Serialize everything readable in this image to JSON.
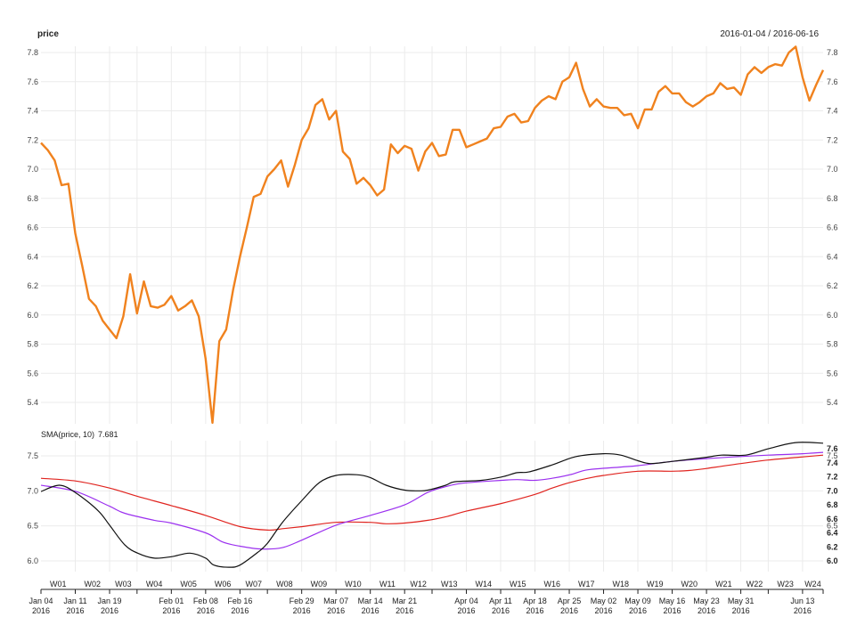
{
  "chart_data": [
    {
      "type": "line",
      "title": "price",
      "date_range": "2016-01-04 / 2016-06-16",
      "ylim": [
        5.3,
        7.85
      ],
      "yticks": [
        "5.4",
        "5.6",
        "5.8",
        "6.0",
        "6.2",
        "6.4",
        "6.6",
        "6.8",
        "7.0",
        "7.2",
        "7.4",
        "7.6",
        "7.8"
      ],
      "grid": true,
      "color": "#f0821e",
      "values": [
        7.18,
        7.13,
        7.06,
        6.89,
        6.9,
        6.56,
        6.34,
        6.11,
        6.06,
        5.96,
        5.9,
        5.84,
        5.99,
        6.28,
        6.01,
        6.23,
        6.06,
        6.05,
        6.07,
        6.13,
        6.03,
        6.06,
        6.1,
        5.99,
        5.7,
        5.26,
        5.82,
        5.9,
        6.17,
        6.4,
        6.6,
        6.81,
        6.83,
        6.95,
        7.0,
        7.06,
        6.88,
        7.03,
        7.2,
        7.28,
        7.44,
        7.48,
        7.34,
        7.4,
        7.12,
        7.07,
        6.9,
        6.94,
        6.89,
        6.82,
        6.86,
        7.17,
        7.11,
        7.16,
        7.14,
        6.99,
        7.12,
        7.18,
        7.09,
        7.1,
        7.27,
        7.27,
        7.15,
        7.17,
        7.19,
        7.21,
        7.28,
        7.29,
        7.36,
        7.38,
        7.32,
        7.33,
        7.42,
        7.47,
        7.5,
        7.48,
        7.6,
        7.63,
        7.73,
        7.55,
        7.43,
        7.48,
        7.43,
        7.42,
        7.42,
        7.37,
        7.38,
        7.28,
        7.41,
        7.41,
        7.53,
        7.57,
        7.52,
        7.52,
        7.46,
        7.43,
        7.46,
        7.5,
        7.52,
        7.59,
        7.55,
        7.56,
        7.51,
        7.65,
        7.7,
        7.66,
        7.7,
        7.72,
        7.71,
        7.8,
        7.84,
        7.63,
        7.47,
        7.58,
        7.68
      ]
    },
    {
      "type": "line",
      "title": "SMA(price, 10)",
      "last_value": "7.681",
      "ylim": [
        5.88,
        7.72
      ],
      "yticks_left": [
        "6.0",
        "6.5",
        "7.0",
        "7.5"
      ],
      "yticks_right_bold": [
        "6.0",
        "6.2",
        "6.4",
        "6.6",
        "6.8",
        "7.0",
        "7.2",
        "7.4",
        "7.6"
      ],
      "yticks_right": [
        "6.5",
        "7.5"
      ],
      "grid": true,
      "series": [
        {
          "name": "black",
          "color": "#111111",
          "x": [
            0,
            2.7,
            5.1,
            8.3,
            10,
            12.2,
            14.1,
            16.5,
            19,
            21.7,
            24,
            25.2,
            27.4,
            29,
            31.7,
            33,
            35.2,
            38.1,
            40.6,
            43,
            46,
            48,
            50.3,
            53,
            55.1,
            56.4,
            59,
            60.3,
            64.2,
            67.2,
            69.4,
            71.1,
            74.5,
            78,
            82,
            84.5,
            87,
            88.8,
            91.9,
            97,
            99.2,
            102.7,
            106,
            110,
            114
          ],
          "y": [
            6.99,
            7.08,
            6.97,
            6.72,
            6.51,
            6.23,
            6.11,
            6.04,
            6.06,
            6.11,
            6.04,
            5.94,
            5.91,
            5.94,
            6.13,
            6.25,
            6.55,
            6.87,
            7.12,
            7.22,
            7.23,
            7.19,
            7.08,
            7.01,
            7.0,
            7.01,
            7.08,
            7.13,
            7.15,
            7.2,
            7.26,
            7.27,
            7.37,
            7.49,
            7.53,
            7.51,
            7.43,
            7.39,
            7.42,
            7.48,
            7.51,
            7.51,
            7.6,
            7.69,
            7.68
          ]
        },
        {
          "name": "purple",
          "color": "#9b30ef",
          "x": [
            0,
            5.1,
            10,
            12.2,
            16.5,
            19,
            24,
            26.5,
            29,
            32.1,
            35.2,
            38.1,
            43,
            48,
            53,
            56.4,
            59,
            61.5,
            67.1,
            69.4,
            72,
            74.5,
            77.1,
            79.7,
            84.5,
            87,
            91.9,
            97,
            102,
            106,
            111,
            114
          ],
          "y": [
            7.08,
            6.99,
            6.78,
            6.68,
            6.58,
            6.54,
            6.4,
            6.27,
            6.21,
            6.17,
            6.19,
            6.3,
            6.51,
            6.65,
            6.8,
            6.98,
            7.06,
            7.11,
            7.15,
            7.16,
            7.15,
            7.18,
            7.23,
            7.3,
            7.34,
            7.36,
            7.42,
            7.46,
            7.49,
            7.51,
            7.53,
            7.55
          ]
        },
        {
          "name": "red",
          "color": "#e0241f",
          "x": [
            0,
            5.1,
            10,
            14.1,
            19,
            24,
            29,
            33,
            35.2,
            38.1,
            43,
            48,
            50.3,
            53,
            56.4,
            59,
            62,
            67.1,
            72,
            74.5,
            77.1,
            79.7,
            82,
            87,
            91.9,
            94.4,
            97,
            102,
            106,
            110.4,
            114
          ],
          "y": [
            7.18,
            7.14,
            7.04,
            6.92,
            6.79,
            6.65,
            6.49,
            6.44,
            6.46,
            6.49,
            6.55,
            6.55,
            6.53,
            6.54,
            6.58,
            6.63,
            6.71,
            6.82,
            6.95,
            7.04,
            7.12,
            7.18,
            7.22,
            7.28,
            7.28,
            7.29,
            7.32,
            7.39,
            7.44,
            7.48,
            7.51
          ]
        }
      ]
    }
  ],
  "x_axis": {
    "ticks": [
      {
        "idx": 0,
        "date": "Jan 04",
        "year": "2016"
      },
      {
        "idx": 5,
        "date": "Jan 11",
        "year": "2016"
      },
      {
        "idx": 10,
        "date": "Jan 19",
        "year": "2016"
      },
      {
        "idx": 14,
        "date": "",
        "year": ""
      },
      {
        "idx": 19,
        "date": "Feb 01",
        "year": "2016"
      },
      {
        "idx": 24,
        "date": "Feb 08",
        "year": "2016"
      },
      {
        "idx": 29,
        "date": "Feb 16",
        "year": "2016"
      },
      {
        "idx": 33,
        "date": "",
        "year": ""
      },
      {
        "idx": 38,
        "date": "Feb 29",
        "year": "2016"
      },
      {
        "idx": 43,
        "date": "Mar 07",
        "year": "2016"
      },
      {
        "idx": 48,
        "date": "Mar 14",
        "year": "2016"
      },
      {
        "idx": 53,
        "date": "Mar 21",
        "year": "2016"
      },
      {
        "idx": 57,
        "date": "",
        "year": ""
      },
      {
        "idx": 62,
        "date": "Apr 04",
        "year": "2016"
      },
      {
        "idx": 67,
        "date": "Apr 11",
        "year": "2016"
      },
      {
        "idx": 72,
        "date": "Apr 18",
        "year": "2016"
      },
      {
        "idx": 77,
        "date": "Apr 25",
        "year": "2016"
      },
      {
        "idx": 82,
        "date": "May 02",
        "year": "2016"
      },
      {
        "idx": 87,
        "date": "May 09",
        "year": "2016"
      },
      {
        "idx": 92,
        "date": "May 16",
        "year": "2016"
      },
      {
        "idx": 97,
        "date": "May 23",
        "year": "2016"
      },
      {
        "idx": 102,
        "date": "May 31",
        "year": "2016"
      },
      {
        "idx": 106,
        "date": "",
        "year": ""
      },
      {
        "idx": 111,
        "date": "Jun 13",
        "year": "2016"
      },
      {
        "idx": 114,
        "date": "",
        "year": ""
      }
    ],
    "weeks": [
      "W01",
      "W02",
      "W03",
      "W04",
      "W05",
      "W06",
      "W07",
      "W08",
      "W09",
      "W10",
      "W11",
      "W12",
      "W13",
      "W14",
      "W15",
      "W16",
      "W17",
      "W18",
      "W19",
      "W20",
      "W21",
      "W22",
      "W23",
      "W24"
    ]
  }
}
